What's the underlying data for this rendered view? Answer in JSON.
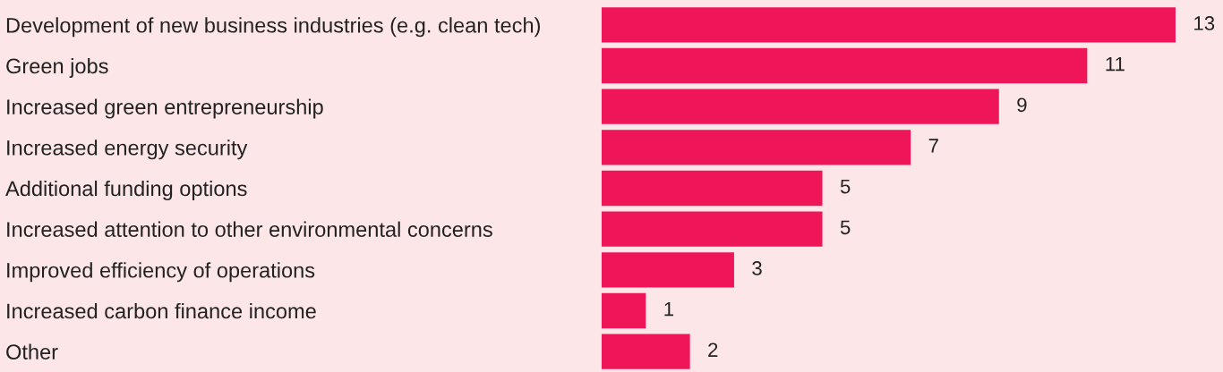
{
  "chart_data": {
    "type": "bar",
    "orientation": "horizontal",
    "categories": [
      "Development of new business industries (e.g. clean tech)",
      "Green jobs",
      "Increased green entrepreneurship",
      "Increased energy security",
      "Additional funding options",
      "Increased attention to other environmental concerns",
      "Improved efficiency of operations",
      "Increased carbon finance income",
      "Other"
    ],
    "values": [
      13,
      11,
      9,
      7,
      5,
      5,
      3,
      1,
      2
    ],
    "color": "#ee1558",
    "xlim": [
      0,
      13
    ],
    "data_labels": true,
    "tick_labels": "y",
    "grid": false,
    "legend": false
  }
}
